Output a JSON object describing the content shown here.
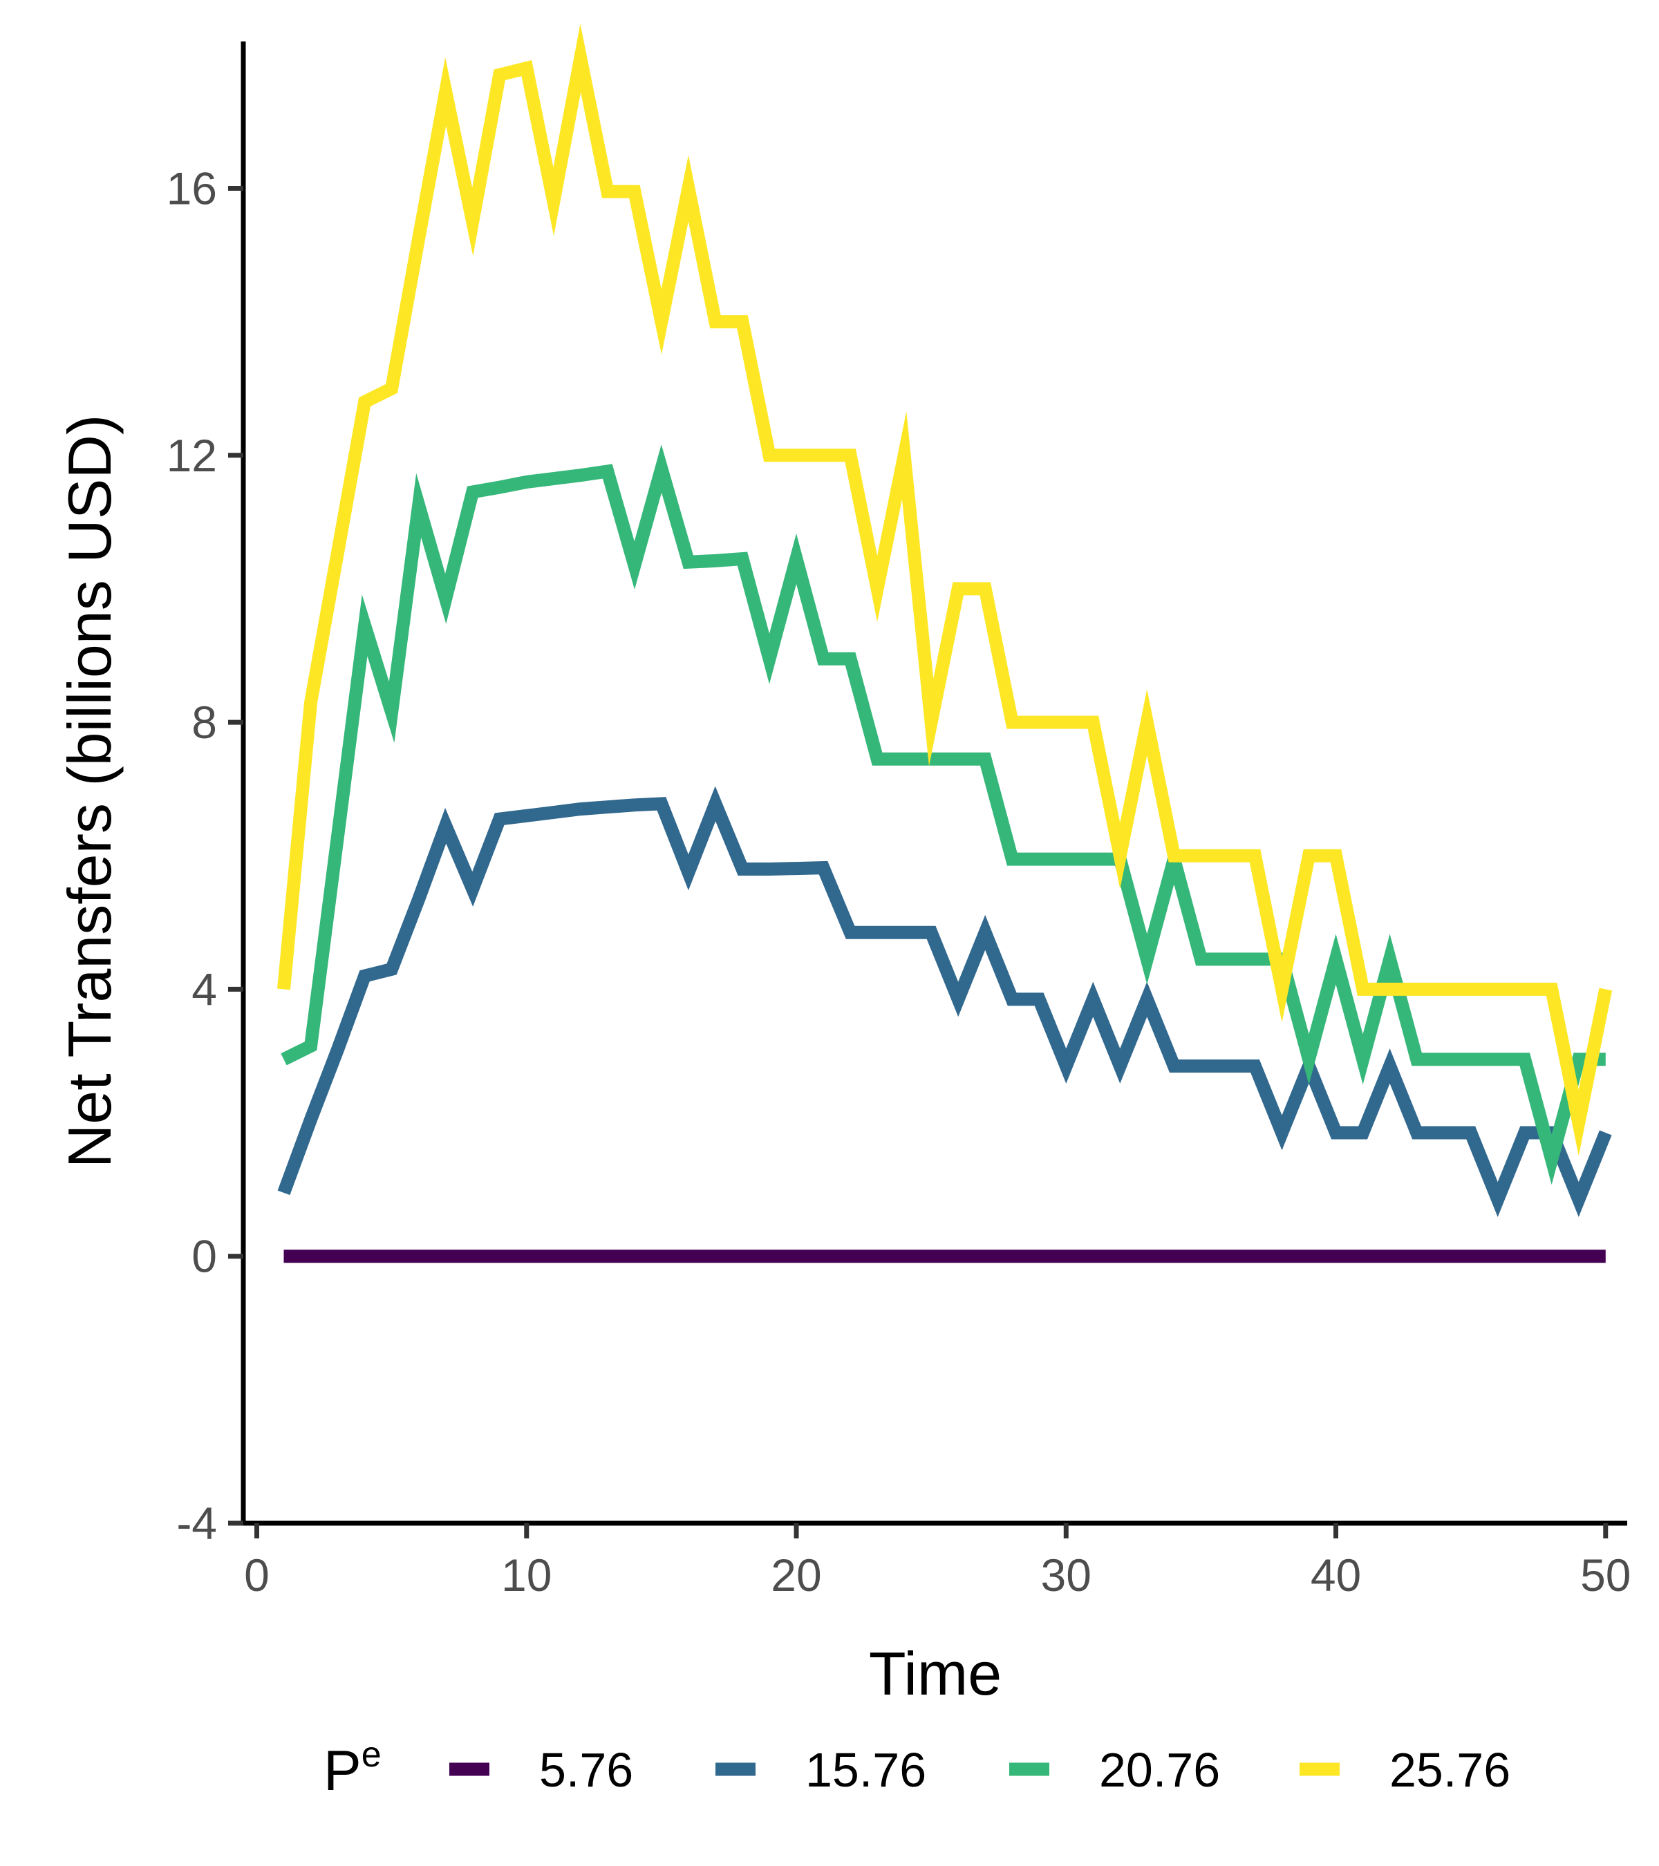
{
  "chart_data": {
    "type": "line",
    "xlabel": "Time",
    "ylabel": "Net Transfers (billions USD)",
    "xlim": [
      -0.5,
      50.8
    ],
    "ylim": [
      -4,
      18.2
    ],
    "xticks": [
      0,
      10,
      20,
      30,
      40,
      50
    ],
    "yticks": [
      -4,
      0,
      4,
      8,
      12,
      16
    ],
    "x_tick_labels": [
      "0",
      "10",
      "20",
      "30",
      "40",
      "50"
    ],
    "y_tick_labels": [
      "-4",
      "0",
      "4",
      "8",
      "12",
      "16"
    ],
    "grid": false,
    "legend": {
      "title": "P",
      "title_superscript": "e",
      "position": "bottom"
    },
    "x": [
      1,
      2,
      3,
      4,
      5,
      6,
      7,
      8,
      9,
      10,
      11,
      12,
      13,
      14,
      15,
      16,
      17,
      18,
      19,
      20,
      21,
      22,
      23,
      24,
      25,
      26,
      27,
      28,
      29,
      30,
      31,
      32,
      33,
      34,
      35,
      36,
      37,
      38,
      39,
      40,
      41,
      42,
      43,
      44,
      45,
      46,
      47,
      48,
      49,
      50
    ],
    "series": [
      {
        "name": "5.76",
        "color": "#440154",
        "values": [
          0,
          0,
          0,
          0,
          0,
          0,
          0,
          0,
          0,
          0,
          0,
          0,
          0,
          0,
          0,
          0,
          0,
          0,
          0,
          0,
          0,
          0,
          0,
          0,
          0,
          0,
          0,
          0,
          0,
          0,
          0,
          0,
          0,
          0,
          0,
          0,
          0,
          0,
          0,
          0,
          0,
          0,
          0,
          0,
          0,
          0,
          0,
          0,
          0,
          0
        ]
      },
      {
        "name": "15.76",
        "color": "#31688e",
        "values": [
          0.95,
          2.05,
          3.1,
          4.2,
          4.3,
          5.35,
          6.45,
          5.5,
          6.55,
          6.6,
          6.65,
          6.7,
          6.73,
          6.76,
          6.78,
          5.75,
          6.78,
          5.8,
          5.8,
          5.81,
          5.82,
          4.85,
          4.85,
          4.85,
          4.85,
          3.85,
          4.85,
          3.85,
          3.85,
          2.85,
          3.85,
          2.85,
          3.85,
          2.85,
          2.85,
          2.85,
          2.85,
          1.85,
          2.85,
          1.85,
          1.85,
          2.85,
          1.85,
          1.85,
          1.85,
          0.85,
          1.85,
          1.85,
          0.85,
          1.85
        ]
      },
      {
        "name": "20.76",
        "color": "#35b779",
        "values": [
          2.95,
          3.15,
          6.3,
          9.45,
          8.15,
          11.25,
          9.85,
          11.45,
          11.52,
          11.6,
          11.65,
          11.7,
          11.76,
          10.35,
          11.8,
          10.4,
          10.42,
          10.45,
          8.95,
          10.45,
          8.95,
          8.95,
          7.45,
          7.45,
          7.45,
          7.45,
          7.45,
          5.95,
          5.95,
          5.95,
          5.95,
          5.95,
          4.45,
          5.95,
          4.45,
          4.45,
          4.45,
          4.45,
          2.95,
          4.45,
          2.95,
          4.45,
          2.95,
          2.95,
          2.95,
          2.95,
          2.95,
          1.45,
          2.95,
          2.95
        ]
      },
      {
        "name": "25.76",
        "color": "#fde725",
        "values": [
          4.0,
          8.3,
          10.55,
          12.8,
          13.0,
          15.25,
          17.45,
          15.5,
          17.7,
          17.8,
          15.8,
          17.95,
          15.95,
          15.95,
          14.0,
          16.0,
          14.0,
          14.0,
          12.0,
          12.0,
          12.0,
          12.0,
          10.0,
          12.0,
          8.0,
          10.0,
          10.0,
          8.0,
          8.0,
          8.0,
          8.0,
          6.0,
          8.0,
          6.0,
          6.0,
          6.0,
          6.0,
          4.0,
          6.0,
          6.0,
          4.0,
          4.0,
          4.0,
          4.0,
          4.0,
          4.0,
          4.0,
          4.0,
          2.0,
          4.0
        ]
      }
    ]
  }
}
